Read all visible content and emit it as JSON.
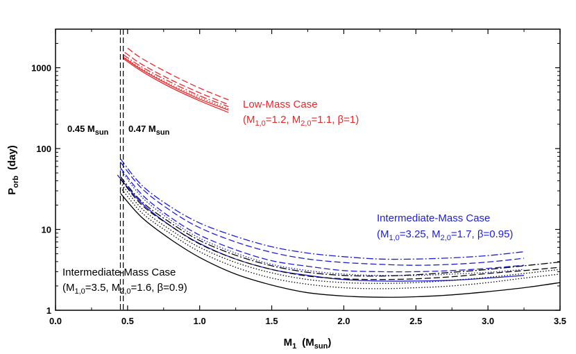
{
  "chart_data": {
    "type": "line",
    "title": "",
    "xlabel": {
      "main": "M",
      "sub": "1",
      "unit_open": "(M",
      "unit_sub": "sun",
      "unit_close": ")"
    },
    "ylabel": {
      "main": "P",
      "sub": "orb",
      "unit": "(day)"
    },
    "xlim": [
      0.0,
      3.5
    ],
    "ylim": [
      1,
      3000
    ],
    "yscale": "log",
    "x_ticks": [
      0.0,
      0.5,
      1.0,
      1.5,
      2.0,
      2.5,
      3.0,
      3.5
    ],
    "x_tick_labels": [
      "0.0",
      "0.5",
      "1.0",
      "1.5",
      "2.0",
      "2.5",
      "3.0",
      "3.5"
    ],
    "y_ticks": [
      1,
      10,
      100,
      1000
    ],
    "y_tick_labels": [
      "1",
      "10",
      "100",
      "1000"
    ],
    "vertical_lines": [
      {
        "x": 0.45,
        "label_main": "0.45 M",
        "label_sub": "sun"
      },
      {
        "x": 0.47,
        "label_main": "0.47 M",
        "label_sub": "sun"
      }
    ],
    "annotations": [
      {
        "id": "low",
        "color": "#e8262a",
        "line1": "Low-Mass Case",
        "line2": [
          "(M",
          "1,0",
          "=1.2, M",
          "2,0",
          "=1.1, β=1)"
        ]
      },
      {
        "id": "int-blue",
        "color": "#1c1cd6",
        "line1": "Intermediate-Mass Case",
        "line2": [
          "(M",
          "1,0",
          "=3.25, M",
          "2,0",
          "=1.7, β=0.95)"
        ]
      },
      {
        "id": "int-black",
        "color": "#000000",
        "line1": "Intermediate-Mass Case",
        "line2": [
          "(M",
          "1,0",
          "=3.5, M",
          "2,0",
          "=1.6, β=0.9)"
        ]
      }
    ],
    "series": [
      {
        "name": "low-solid-1",
        "color": "#e8262a",
        "dash": "solid",
        "x": [
          0.47,
          0.6,
          0.8,
          1.0,
          1.2
        ],
        "y": [
          1300,
          900,
          570,
          390,
          280
        ]
      },
      {
        "name": "low-solid-2",
        "color": "#e8262a",
        "dash": "solid",
        "x": [
          0.47,
          0.6,
          0.8,
          1.0,
          1.2
        ],
        "y": [
          1350,
          940,
          600,
          410,
          300
        ]
      },
      {
        "name": "low-dotted",
        "color": "#e8262a",
        "dash": "dotted",
        "x": [
          0.47,
          0.6,
          0.8,
          1.0,
          1.2
        ],
        "y": [
          1380,
          970,
          620,
          430,
          310
        ]
      },
      {
        "name": "low-dashdot",
        "color": "#e8262a",
        "dash": "dashdot",
        "x": [
          0.47,
          0.6,
          0.8,
          1.0,
          1.2
        ],
        "y": [
          1450,
          1020,
          660,
          450,
          330
        ]
      },
      {
        "name": "low-dash-1",
        "color": "#e8262a",
        "dash": "dashed",
        "x": [
          0.48,
          0.6,
          0.8,
          1.0,
          1.2
        ],
        "y": [
          1550,
          1100,
          710,
          490,
          350
        ]
      },
      {
        "name": "low-dash-2",
        "color": "#e8262a",
        "dash": "dashed",
        "x": [
          0.5,
          0.6,
          0.8,
          1.0,
          1.2
        ],
        "y": [
          1750,
          1300,
          830,
          560,
          400
        ]
      },
      {
        "name": "blue-solid",
        "color": "#1c1cd6",
        "dash": "solid",
        "x": [
          0.43,
          0.6,
          0.8,
          1.0,
          1.25,
          1.5,
          1.75,
          2.0,
          2.25,
          2.5,
          2.75,
          3.0,
          3.25
        ],
        "y": [
          47,
          21,
          11,
          6.7,
          4.3,
          3.2,
          2.7,
          2.4,
          2.3,
          2.3,
          2.35,
          2.5,
          2.7
        ]
      },
      {
        "name": "blue-dotted",
        "color": "#1c1cd6",
        "dash": "dotted",
        "x": [
          0.45,
          0.6,
          0.8,
          1.0,
          1.25,
          1.5,
          1.75,
          2.0,
          2.25,
          2.5,
          2.75,
          3.0,
          3.25
        ],
        "y": [
          55,
          25,
          13,
          7.8,
          5.1,
          3.7,
          3.1,
          2.8,
          2.7,
          2.7,
          2.8,
          2.95,
          3.2
        ]
      },
      {
        "name": "blue-dashed-1",
        "color": "#1c1cd6",
        "dash": "dashed",
        "x": [
          0.45,
          0.6,
          0.8,
          1.0,
          1.25,
          1.5,
          1.75,
          2.0,
          2.25,
          2.5,
          2.75,
          3.0,
          3.25
        ],
        "y": [
          68,
          32,
          17,
          10.5,
          7.0,
          5.2,
          4.3,
          3.9,
          3.7,
          3.6,
          3.7,
          3.95,
          4.4
        ]
      },
      {
        "name": "blue-dashdot-1",
        "color": "#1c1cd6",
        "dash": "dashdot",
        "x": [
          0.45,
          0.6,
          0.8,
          1.0,
          1.25,
          1.5,
          1.75,
          2.0,
          2.25,
          2.5,
          2.75,
          3.0,
          3.25
        ],
        "y": [
          75,
          35,
          19,
          12,
          8.2,
          6.1,
          5.1,
          4.6,
          4.3,
          4.3,
          4.45,
          4.75,
          5.3
        ]
      },
      {
        "name": "blue-dashed-2",
        "color": "#1c1cd6",
        "dash": "dashed",
        "x": [
          0.45,
          0.6,
          0.8,
          1.0,
          1.25,
          1.5,
          1.75,
          2.0,
          2.25,
          2.5,
          2.75,
          3.0,
          3.25
        ],
        "y": [
          58,
          27,
          14,
          8.5,
          5.6,
          4.1,
          3.5,
          3.1,
          3.0,
          3.0,
          3.1,
          3.3,
          3.6
        ]
      },
      {
        "name": "black-solid",
        "color": "#000000",
        "dash": "solid",
        "x": [
          0.45,
          0.6,
          0.8,
          1.0,
          1.25,
          1.5,
          1.75,
          2.0,
          2.25,
          2.5,
          2.75,
          3.0,
          3.25,
          3.5
        ],
        "y": [
          28,
          14,
          7.5,
          4.5,
          2.8,
          2.05,
          1.65,
          1.5,
          1.45,
          1.47,
          1.55,
          1.7,
          1.9,
          2.2
        ]
      },
      {
        "name": "black-dotted-1",
        "color": "#000000",
        "dash": "dotted",
        "x": [
          0.45,
          0.6,
          0.8,
          1.0,
          1.25,
          1.5,
          1.75,
          2.0,
          2.25,
          2.5,
          2.75,
          3.0,
          3.25,
          3.5
        ],
        "y": [
          33,
          16,
          8.8,
          5.3,
          3.4,
          2.5,
          2.1,
          1.9,
          1.85,
          1.9,
          2.0,
          2.2,
          2.5,
          2.8
        ]
      },
      {
        "name": "black-dotted-2",
        "color": "#000000",
        "dash": "dotted",
        "x": [
          0.45,
          0.6,
          0.8,
          1.0,
          1.25,
          1.5,
          1.75,
          2.0,
          2.25,
          2.5,
          2.75,
          3.0,
          3.25,
          3.5
        ],
        "y": [
          38,
          18,
          9.8,
          6.0,
          3.9,
          2.9,
          2.4,
          2.2,
          2.15,
          2.2,
          2.35,
          2.55,
          2.85,
          3.2
        ]
      },
      {
        "name": "black-dashed",
        "color": "#000000",
        "dash": "dashed",
        "x": [
          0.45,
          0.6,
          0.8,
          1.0,
          1.25,
          1.5,
          1.75,
          2.0,
          2.25,
          2.5,
          2.75,
          3.0,
          3.25,
          3.5
        ],
        "y": [
          42,
          20,
          11,
          6.6,
          4.3,
          3.2,
          2.65,
          2.45,
          2.4,
          2.45,
          2.6,
          2.85,
          3.1,
          3.4
        ]
      },
      {
        "name": "black-dashdot",
        "color": "#000000",
        "dash": "dashdot",
        "x": [
          0.45,
          0.6,
          0.8,
          1.0,
          1.25,
          1.5,
          1.75,
          2.0,
          2.25,
          2.5,
          2.75,
          3.0,
          3.25,
          3.5
        ],
        "y": [
          45,
          22,
          12,
          7.3,
          4.8,
          3.55,
          2.95,
          2.7,
          2.65,
          2.75,
          2.95,
          3.2,
          3.55,
          3.95
        ]
      }
    ]
  }
}
